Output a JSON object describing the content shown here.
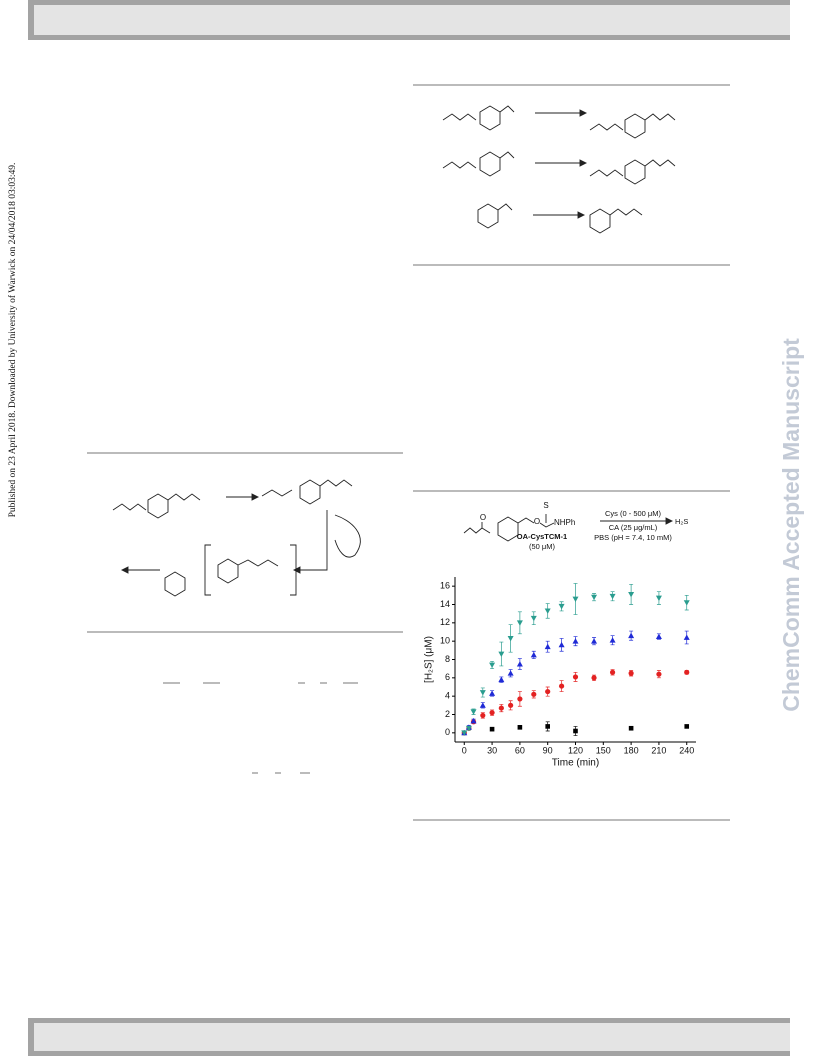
{
  "sidebar": {
    "left": "Published on 23 April 2018. Downloaded by University of Warwick on 24/04/2018 03:03:49.",
    "right": "ChemComm Accepted Manuscript"
  },
  "scheme": {
    "s": "S",
    "o1": "O",
    "o2": "O",
    "nhph": "NHPh",
    "compound": "OA-CysTCM-1",
    "compound_conc": "(50 μM)",
    "cond1": "Cys (0 - 500 μM)",
    "cond2": "CA (25 μg/mL)",
    "cond3": "PBS (pH = 7.4, 10 mM)",
    "product": "H₂S"
  },
  "chart_data": {
    "type": "scatter",
    "xlabel": "Time (min)",
    "ylabel": "[H₂S] (μM)",
    "xlim": [
      -10,
      250
    ],
    "ylim": [
      -1,
      17
    ],
    "xticks": [
      0,
      30,
      60,
      90,
      120,
      150,
      180,
      210,
      240
    ],
    "yticks": [
      0,
      2,
      4,
      6,
      8,
      10,
      12,
      14,
      16
    ],
    "series": [
      {
        "marker": "square",
        "color": "#000000",
        "x": [
          0,
          30,
          60,
          90,
          120,
          180,
          240
        ],
        "values": [
          0,
          0.4,
          0.6,
          0.7,
          0.2,
          0.5,
          0.7
        ],
        "errors": [
          0,
          0,
          0.2,
          0.5,
          0.5,
          0,
          0
        ]
      },
      {
        "marker": "circle",
        "color": "#e32222",
        "x": [
          0,
          5,
          10,
          20,
          30,
          40,
          50,
          60,
          75,
          90,
          105,
          120,
          140,
          160,
          180,
          210,
          240
        ],
        "values": [
          0,
          0.5,
          1.2,
          1.9,
          2.2,
          2.7,
          3.0,
          3.7,
          4.2,
          4.5,
          5.1,
          6.1,
          6.0,
          6.6,
          6.5,
          6.4,
          6.6
        ],
        "errors": [
          0,
          0.2,
          0.2,
          0.3,
          0.3,
          0.4,
          0.5,
          0.8,
          0.4,
          0.5,
          0.6,
          0.5,
          0.3,
          0.3,
          0.3,
          0.4,
          0.2
        ]
      },
      {
        "marker": "triangle-up",
        "color": "#1f2ad6",
        "x": [
          0,
          5,
          10,
          20,
          30,
          40,
          50,
          60,
          75,
          90,
          105,
          120,
          140,
          160,
          180,
          210,
          240
        ],
        "values": [
          0,
          0.6,
          1.3,
          3.0,
          4.3,
          5.8,
          6.5,
          7.5,
          8.5,
          9.4,
          9.6,
          10.0,
          10.0,
          10.1,
          10.6,
          10.5,
          10.4
        ],
        "errors": [
          0,
          0.2,
          0.2,
          0.3,
          0.3,
          0.3,
          0.4,
          0.6,
          0.4,
          0.6,
          0.7,
          0.5,
          0.4,
          0.5,
          0.5,
          0.3,
          0.7
        ]
      },
      {
        "marker": "triangle-down",
        "color": "#2a9d8f",
        "x": [
          0,
          5,
          10,
          20,
          30,
          40,
          50,
          60,
          75,
          90,
          105,
          120,
          140,
          160,
          180,
          210,
          240
        ],
        "values": [
          0,
          0.5,
          2.3,
          4.4,
          7.4,
          8.6,
          10.3,
          12.0,
          12.5,
          13.3,
          13.8,
          14.6,
          14.8,
          14.9,
          15.1,
          14.7,
          14.2
        ],
        "errors": [
          0,
          0.2,
          0.3,
          0.5,
          0.4,
          1.3,
          1.5,
          1.2,
          0.7,
          0.8,
          0.5,
          1.7,
          0.4,
          0.5,
          1.1,
          0.7,
          0.8
        ]
      }
    ]
  }
}
